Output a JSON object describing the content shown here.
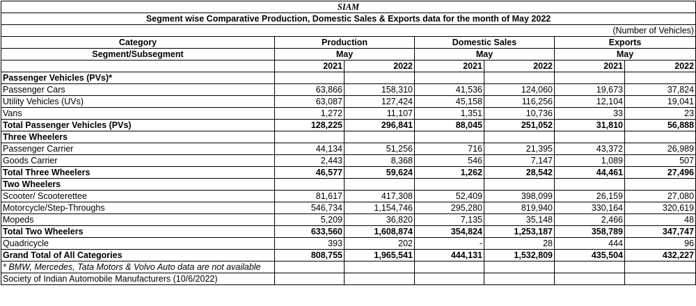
{
  "header": {
    "org": "SIAM",
    "title": "Segment wise Comparative Production, Domestic Sales & Exports data for the month of May 2022",
    "unit": "(Number of Vehicles)"
  },
  "columns": {
    "category": "Category",
    "subsegment": "Segment/Subsegment",
    "production": "Production",
    "domestic": "Domestic Sales",
    "exports": "Exports",
    "month": "May",
    "y1": "2021",
    "y2": "2022"
  },
  "rows": [
    {
      "label": "Passenger Vehicles (PVs)*",
      "type": "section",
      "v": [
        "",
        "",
        "",
        "",
        "",
        ""
      ]
    },
    {
      "label": "Passenger Cars",
      "type": "item",
      "v": [
        "63,866",
        "158,310",
        "41,536",
        "124,060",
        "19,673",
        "37,824"
      ]
    },
    {
      "label": "Utility Vehicles (UVs)",
      "type": "item",
      "v": [
        "63,087",
        "127,424",
        "45,158",
        "116,256",
        "12,104",
        "19,041"
      ]
    },
    {
      "label": "Vans",
      "type": "item",
      "v": [
        "1,272",
        "11,107",
        "1,351",
        "10,736",
        "33",
        "23"
      ]
    },
    {
      "label": "Total Passenger Vehicles (PVs)",
      "type": "total",
      "v": [
        "128,225",
        "296,841",
        "88,045",
        "251,052",
        "31,810",
        "56,888"
      ]
    },
    {
      "label": "Three Wheelers",
      "type": "section",
      "v": [
        "",
        "",
        "",
        "",
        "",
        ""
      ]
    },
    {
      "label": "Passenger Carrier",
      "type": "item",
      "v": [
        "44,134",
        "51,256",
        "716",
        "21,395",
        "43,372",
        "26,989"
      ]
    },
    {
      "label": "Goods Carrier",
      "type": "item",
      "v": [
        "2,443",
        "8,368",
        "546",
        "7,147",
        "1,089",
        "507"
      ]
    },
    {
      "label": "Total Three Wheelers",
      "type": "total",
      "v": [
        "46,577",
        "59,624",
        "1,262",
        "28,542",
        "44,461",
        "27,496"
      ]
    },
    {
      "label": "Two Wheelers",
      "type": "section",
      "v": [
        "",
        "",
        "",
        "",
        "",
        ""
      ]
    },
    {
      "label": "Scooter/ Scooterettee",
      "type": "item",
      "v": [
        "81,617",
        "417,308",
        "52,409",
        "398,099",
        "26,159",
        "27,080"
      ]
    },
    {
      "label": "Motorcycle/Step-Throughs",
      "type": "item",
      "v": [
        "546,734",
        "1,154,746",
        "295,280",
        "819,940",
        "330,164",
        "320,619"
      ]
    },
    {
      "label": "Mopeds",
      "type": "item",
      "v": [
        "5,209",
        "36,820",
        "7,135",
        "35,148",
        "2,466",
        "48"
      ]
    },
    {
      "label": "Total Two Wheelers",
      "type": "total",
      "v": [
        "633,560",
        "1,608,874",
        "354,824",
        "1,253,187",
        "358,789",
        "347,747"
      ]
    },
    {
      "label": "Quadricycle",
      "type": "item",
      "v": [
        "393",
        "202",
        "-",
        "28",
        "444",
        "96"
      ]
    },
    {
      "label": "Grand Total of All Categories",
      "type": "total",
      "v": [
        "808,755",
        "1,965,541",
        "444,131",
        "1,532,809",
        "435,504",
        "432,227"
      ]
    }
  ],
  "footer": {
    "note": "* BMW, Mercedes, Tata Motors & Volvo Auto data are not available",
    "source": "Society of Indian Automobile Manufacturers (10/6/2022)"
  }
}
